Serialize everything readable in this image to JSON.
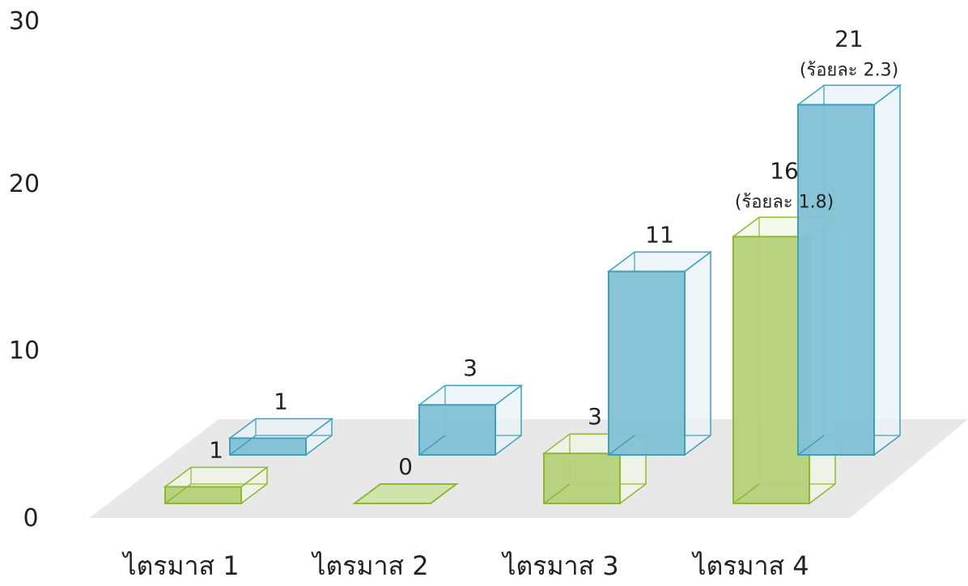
{
  "chart_data": {
    "type": "bar",
    "categories": [
      "ไตรมาส 1",
      "ไตรมาส 2",
      "ไตรมาส 3",
      "ไตรมาส 4"
    ],
    "series": [
      {
        "values": [
          1,
          0,
          3,
          16
        ],
        "color": "#8db832",
        "annotations": [
          "",
          "",
          "",
          "(ร้อยละ 1.8)"
        ]
      },
      {
        "values": [
          1,
          3,
          11,
          21
        ],
        "color": "#3f9fbf",
        "annotations": [
          "",
          "",
          "",
          "(ร้อยละ 2.3)"
        ]
      }
    ],
    "value_labels": [
      [
        "1",
        "0",
        "3",
        "16"
      ],
      [
        "1",
        "3",
        "11",
        "21"
      ]
    ],
    "yticks": [
      "0",
      "10",
      "20",
      "30"
    ],
    "ylim": [
      0,
      30
    ],
    "grid": false,
    "style": "3d"
  }
}
